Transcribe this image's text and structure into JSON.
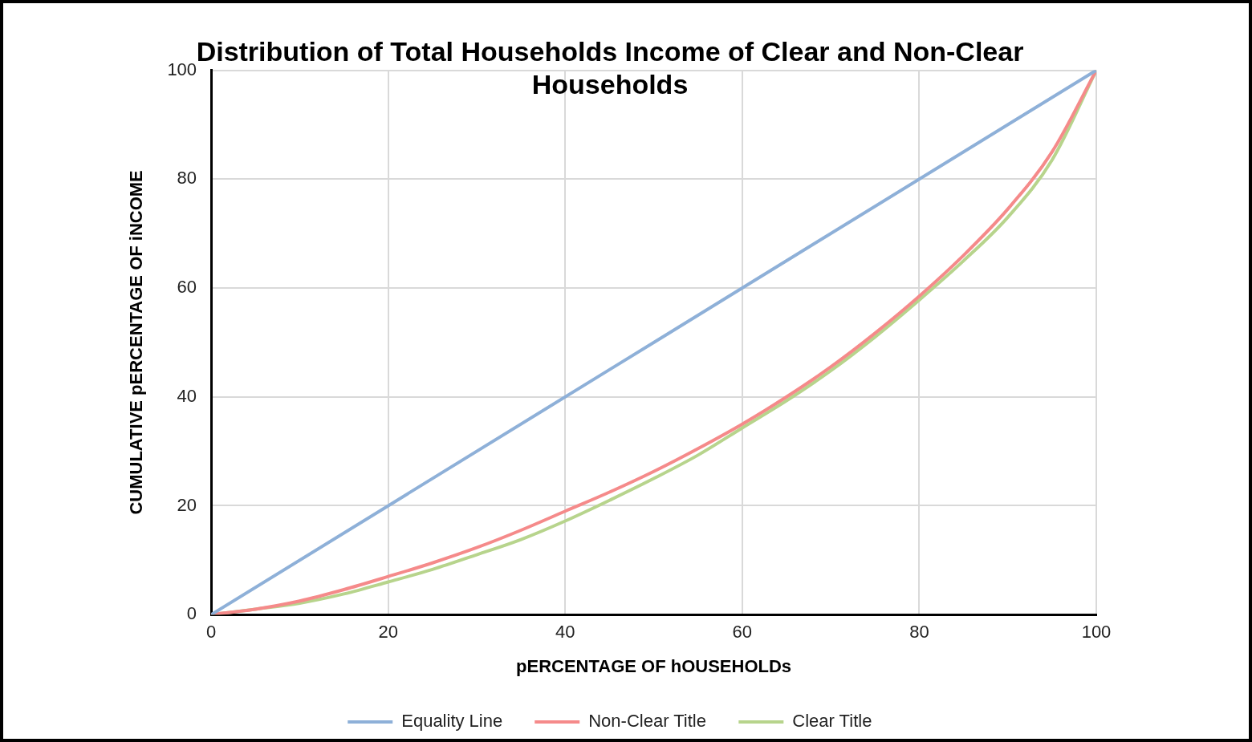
{
  "chart_data": {
    "type": "line",
    "title": "Distribution of Total Households Income of Clear and Non-Clear Households",
    "xlabel": "pERCENTAGE OF hOUSEHOLDs",
    "ylabel": "CUMULATIVE pERCENTAGE OF iNCOME",
    "x": [
      0,
      5,
      10,
      15,
      20,
      25,
      30,
      35,
      40,
      45,
      50,
      55,
      60,
      65,
      70,
      75,
      80,
      85,
      90,
      95,
      100
    ],
    "series": [
      {
        "name": "Equality Line",
        "color": "#8eb0d8",
        "x": [
          0,
          100
        ],
        "values": [
          0,
          100
        ]
      },
      {
        "name": "Non-Clear Title",
        "color": "#f58a8a",
        "values": [
          0,
          1,
          2.5,
          4.6,
          7,
          9.5,
          12.3,
          15.5,
          19,
          22.5,
          26.3,
          30.5,
          35,
          40,
          45.5,
          51.7,
          58.5,
          66,
          74.5,
          85,
          100
        ]
      },
      {
        "name": "Clear Title",
        "color": "#b7d48c",
        "values": [
          0,
          1,
          2.1,
          3.8,
          6,
          8.3,
          11,
          13.8,
          17.2,
          21,
          25,
          29.3,
          34.3,
          39.3,
          44.8,
          51,
          57.8,
          65,
          73,
          83.5,
          100
        ]
      }
    ],
    "xlim": [
      0,
      100
    ],
    "ylim": [
      0,
      100
    ],
    "xticks": [
      0,
      20,
      40,
      60,
      80,
      100
    ],
    "yticks": [
      0,
      20,
      40,
      60,
      80,
      100
    ],
    "grid": true,
    "legend": "bottom",
    "marker": "none",
    "line_style": "solid"
  }
}
